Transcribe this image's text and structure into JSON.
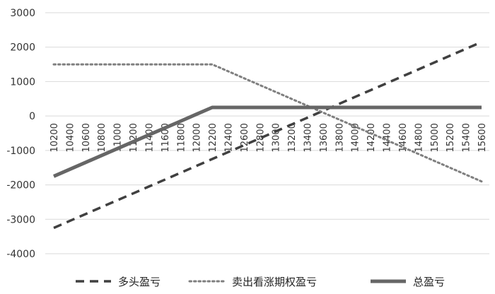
{
  "chart_data": {
    "type": "line",
    "title": "",
    "xlabel": "",
    "ylabel": "",
    "categories": [
      "10200",
      "10400",
      "10600",
      "10800",
      "11000",
      "11200",
      "11400",
      "11600",
      "11800",
      "12000",
      "12200",
      "12400",
      "12600",
      "12800",
      "13000",
      "13200",
      "13400",
      "13600",
      "13800",
      "14000",
      "14200",
      "14400",
      "14600",
      "14800",
      "15000",
      "15200",
      "15400",
      "15600"
    ],
    "ylim": [
      -4000,
      3000
    ],
    "yticks": [
      3000,
      2000,
      1000,
      0,
      -1000,
      -2000,
      -3000,
      -4000
    ],
    "ytick_labels": [
      "3000",
      "2000",
      "1000",
      "0",
      "-1000",
      "-2000",
      "-3000",
      "-4000"
    ],
    "grid": true,
    "legend_position": "bottom",
    "series": [
      {
        "name": "多头盈亏",
        "style": "dashed",
        "color": "#404040",
        "values": [
          -3250,
          -3050,
          -2850,
          -2650,
          -2450,
          -2250,
          -2050,
          -1850,
          -1650,
          -1450,
          -1250,
          -1050,
          -850,
          -650,
          -450,
          -250,
          -50,
          150,
          350,
          550,
          750,
          950,
          1150,
          1350,
          1550,
          1750,
          1950,
          2150
        ]
      },
      {
        "name": "卖出看涨期权盈亏",
        "style": "dotted",
        "color": "#7f7f7f",
        "values": [
          1500,
          1500,
          1500,
          1500,
          1500,
          1500,
          1500,
          1500,
          1500,
          1500,
          1500,
          1300,
          1100,
          900,
          700,
          500,
          300,
          100,
          -100,
          -300,
          -500,
          -700,
          -900,
          -1100,
          -1300,
          -1500,
          -1700,
          -1900
        ]
      },
      {
        "name": "总盈亏",
        "style": "solid",
        "color": "#666666",
        "values": [
          -1750,
          -1550,
          -1350,
          -1150,
          -950,
          -750,
          -550,
          -350,
          -150,
          50,
          250,
          250,
          250,
          250,
          250,
          250,
          250,
          250,
          250,
          250,
          250,
          250,
          250,
          250,
          250,
          250,
          250,
          250
        ]
      }
    ]
  }
}
